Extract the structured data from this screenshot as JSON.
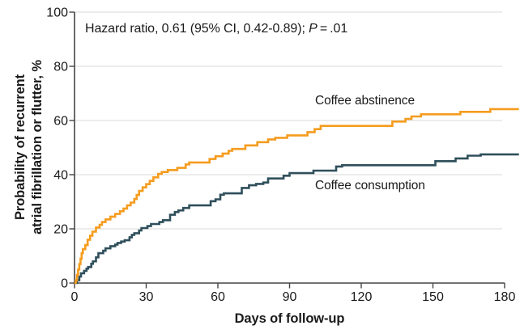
{
  "chart_data": {
    "type": "line",
    "subtype": "kaplan-meier-step",
    "title": "",
    "annotation": "Hazard ratio, 0.61 (95% CI, 0.42-0.89); P = .01",
    "annotation_parts": {
      "before_p": "Hazard ratio, 0.61 (95% CI, 0.42-0.89); ",
      "p": "P",
      "after_p": " = .01"
    },
    "xlabel": "Days of follow-up",
    "ylabel": "Probability of recurrent atrial fibrillation or flutter, %",
    "ylabel_line1": "Probability of recurrent",
    "ylabel_line2": "atrial fibrillation or flutter, %",
    "xlim": [
      0,
      186
    ],
    "ylim": [
      0,
      100
    ],
    "x_ticks": [
      0,
      30,
      60,
      90,
      120,
      150,
      180
    ],
    "y_ticks": [
      0,
      20,
      40,
      60,
      80,
      100
    ],
    "grid": "horizontal",
    "grid_color": "#d8d8d8",
    "axis_color": "#454545",
    "text_color": "#1a1a1a",
    "legend_position": "inline-curve-labels",
    "series": [
      {
        "name": "Coffee abstinence",
        "slug": "coffee-abstinence",
        "color": "#F59C1E",
        "end_day": 186,
        "final_value": 64.2,
        "steps": [
          [
            0.5,
            1
          ],
          [
            1,
            3
          ],
          [
            1.5,
            5
          ],
          [
            2,
            7
          ],
          [
            2.5,
            9
          ],
          [
            3,
            11
          ],
          [
            3.5,
            12.5
          ],
          [
            4.5,
            14
          ],
          [
            5.5,
            16
          ],
          [
            6.5,
            17.5
          ],
          [
            7.5,
            19
          ],
          [
            9,
            20.5
          ],
          [
            10.5,
            21.5
          ],
          [
            11.5,
            22.5
          ],
          [
            13,
            23.5
          ],
          [
            15,
            24.5
          ],
          [
            17,
            25.5
          ],
          [
            19,
            26.5
          ],
          [
            20.5,
            27.5
          ],
          [
            22,
            28.7
          ],
          [
            23.5,
            29.7
          ],
          [
            25,
            31
          ],
          [
            26,
            32.5
          ],
          [
            27,
            34
          ],
          [
            28.5,
            35.3
          ],
          [
            30,
            36.5
          ],
          [
            31.5,
            37.7
          ],
          [
            33,
            39
          ],
          [
            35,
            40.3
          ],
          [
            36.5,
            41
          ],
          [
            39,
            41.7
          ],
          [
            43,
            42.5
          ],
          [
            46.5,
            43.8
          ],
          [
            48,
            44.5
          ],
          [
            56.5,
            45.8
          ],
          [
            59,
            46.8
          ],
          [
            62,
            47.8
          ],
          [
            64.5,
            48.8
          ],
          [
            66,
            49.5
          ],
          [
            71.5,
            50.8
          ],
          [
            76.5,
            52
          ],
          [
            81,
            53
          ],
          [
            84,
            53.6
          ],
          [
            89,
            54.5
          ],
          [
            97.5,
            55.7
          ],
          [
            100.5,
            56.8
          ],
          [
            103,
            58
          ],
          [
            133,
            59.6
          ],
          [
            138.5,
            60.6
          ],
          [
            141,
            61.5
          ],
          [
            145,
            62.3
          ],
          [
            161.5,
            63.2
          ],
          [
            174,
            64.2
          ]
        ]
      },
      {
        "name": "Coffee consumption",
        "slug": "coffee-consumption",
        "color": "#2F4F5B",
        "end_day": 186,
        "final_value": 47.5,
        "steps": [
          [
            1,
            1
          ],
          [
            2,
            2.4
          ],
          [
            2.7,
            3.6
          ],
          [
            4,
            4.5
          ],
          [
            5,
            5.3
          ],
          [
            5.7,
            5.9
          ],
          [
            7,
            7.1
          ],
          [
            7.7,
            8
          ],
          [
            9,
            9.5
          ],
          [
            10,
            11
          ],
          [
            12,
            11.9
          ],
          [
            13,
            12.8
          ],
          [
            15,
            13.6
          ],
          [
            17,
            14.2
          ],
          [
            18,
            14.8
          ],
          [
            19.5,
            15.3
          ],
          [
            21,
            15.8
          ],
          [
            23,
            16.9
          ],
          [
            24,
            17.8
          ],
          [
            25,
            18.4
          ],
          [
            27,
            19.4
          ],
          [
            28,
            20.3
          ],
          [
            30.5,
            21
          ],
          [
            32,
            21.8
          ],
          [
            35.5,
            22.5
          ],
          [
            37,
            23.2
          ],
          [
            40,
            25.2
          ],
          [
            42,
            26.2
          ],
          [
            43.5,
            26.8
          ],
          [
            45.5,
            27.7
          ],
          [
            48,
            28.7
          ],
          [
            57,
            30.2
          ],
          [
            59,
            30.9
          ],
          [
            61,
            32.6
          ],
          [
            62.5,
            33.1
          ],
          [
            70,
            35.1
          ],
          [
            73,
            36.1
          ],
          [
            76,
            36.6
          ],
          [
            79,
            37.1
          ],
          [
            81,
            38.6
          ],
          [
            87.5,
            39.6
          ],
          [
            90,
            40.6
          ],
          [
            100,
            41.5
          ],
          [
            109.5,
            43
          ],
          [
            112,
            43.5
          ],
          [
            151,
            45
          ],
          [
            159.5,
            46
          ],
          [
            164.5,
            47
          ],
          [
            170,
            47.5
          ]
        ]
      }
    ]
  }
}
